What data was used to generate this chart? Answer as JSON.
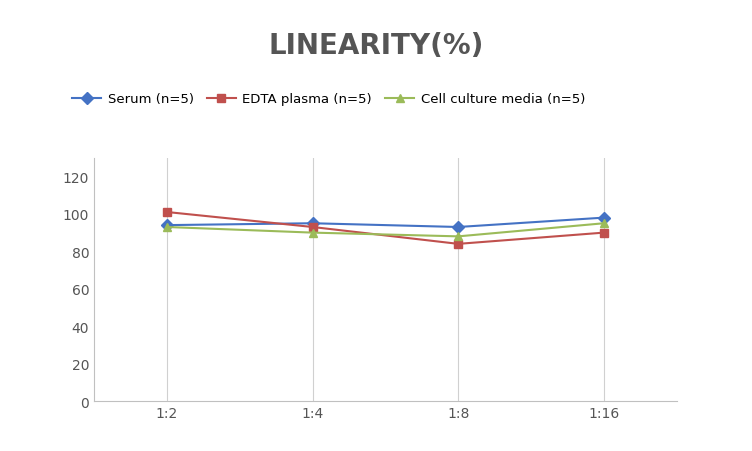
{
  "title": "LINEARITY(%)",
  "title_fontsize": 20,
  "title_fontweight": "bold",
  "title_color": "#555555",
  "x_labels": [
    "1:2",
    "1:4",
    "1:8",
    "1:16"
  ],
  "x_positions": [
    0,
    1,
    2,
    3
  ],
  "serum": {
    "label": "Serum (n=5)",
    "values": [
      94,
      95,
      93,
      98
    ],
    "color": "#4472C4",
    "marker": "D",
    "markersize": 6
  },
  "edta": {
    "label": "EDTA plasma (n=5)",
    "values": [
      101,
      93,
      84,
      90
    ],
    "color": "#C0504D",
    "marker": "s",
    "markersize": 6
  },
  "cell": {
    "label": "Cell culture media (n=5)",
    "values": [
      93,
      90,
      88,
      95
    ],
    "color": "#9BBB59",
    "marker": "^",
    "markersize": 6
  },
  "ylim": [
    0,
    130
  ],
  "yticks": [
    0,
    20,
    40,
    60,
    80,
    100,
    120
  ],
  "background_color": "#ffffff",
  "grid_color": "#d0d0d0",
  "linewidth": 1.5
}
